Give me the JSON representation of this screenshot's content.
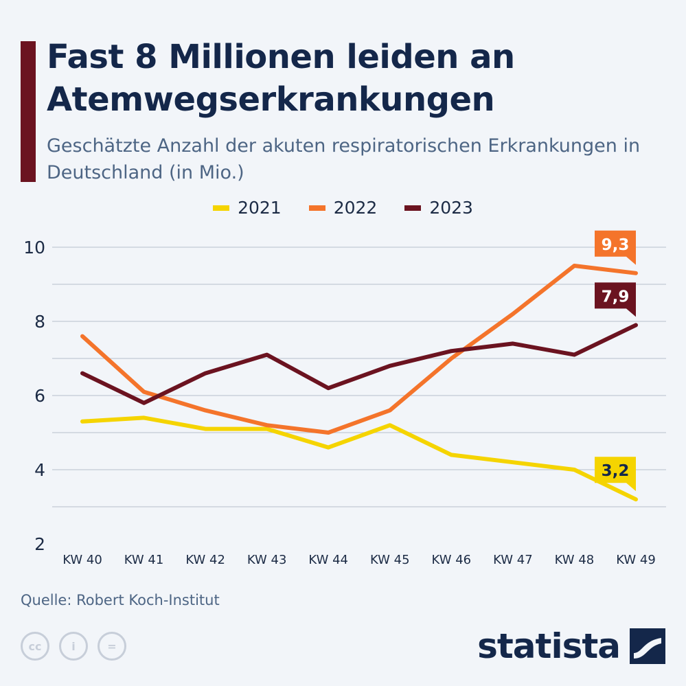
{
  "header": {
    "title": "Fast 8 Millionen leiden an Atemwegserkrankungen",
    "subtitle": "Geschätzte Anzahl der akuten respiratorischen Erkrankungen in Deutschland (in Mio.)"
  },
  "legend": [
    {
      "label": "2021",
      "color": "#f5d400"
    },
    {
      "label": "2022",
      "color": "#f4742b"
    },
    {
      "label": "2023",
      "color": "#6b1320"
    }
  ],
  "chart_data": {
    "type": "line",
    "title": "Fast 8 Millionen leiden an Atemwegserkrankungen",
    "subtitle": "Geschätzte Anzahl der akuten respiratorischen Erkrankungen in Deutschland (in Mio.)",
    "categories": [
      "KW 40",
      "KW 41",
      "KW 42",
      "KW 43",
      "KW 44",
      "KW 45",
      "KW 46",
      "KW 47",
      "KW 48",
      "KW 49"
    ],
    "ylim": [
      2,
      10
    ],
    "yticks": [
      2,
      4,
      6,
      8,
      10
    ],
    "grid": true,
    "legend_position": "top-center",
    "series": [
      {
        "name": "2021",
        "color": "#f5d400",
        "values": [
          5.3,
          5.4,
          5.1,
          5.1,
          4.6,
          5.2,
          4.4,
          4.2,
          4.0,
          3.2
        ],
        "end_label": "3,2"
      },
      {
        "name": "2022",
        "color": "#f4742b",
        "values": [
          7.6,
          6.1,
          5.6,
          5.2,
          5.0,
          5.6,
          7.0,
          8.2,
          9.5,
          9.3
        ],
        "end_label": "9,3"
      },
      {
        "name": "2023",
        "color": "#6b1320",
        "values": [
          6.6,
          5.8,
          6.6,
          7.1,
          6.2,
          6.8,
          7.2,
          7.4,
          7.1,
          7.9
        ],
        "end_label": "7,9"
      }
    ]
  },
  "footer": {
    "source": "Quelle: Robert Koch-Institut",
    "brand": "statista",
    "cc_icons": [
      "cc-icon",
      "by-icon",
      "nd-icon"
    ],
    "cc_glyphs": [
      "cc",
      "i",
      "="
    ]
  }
}
